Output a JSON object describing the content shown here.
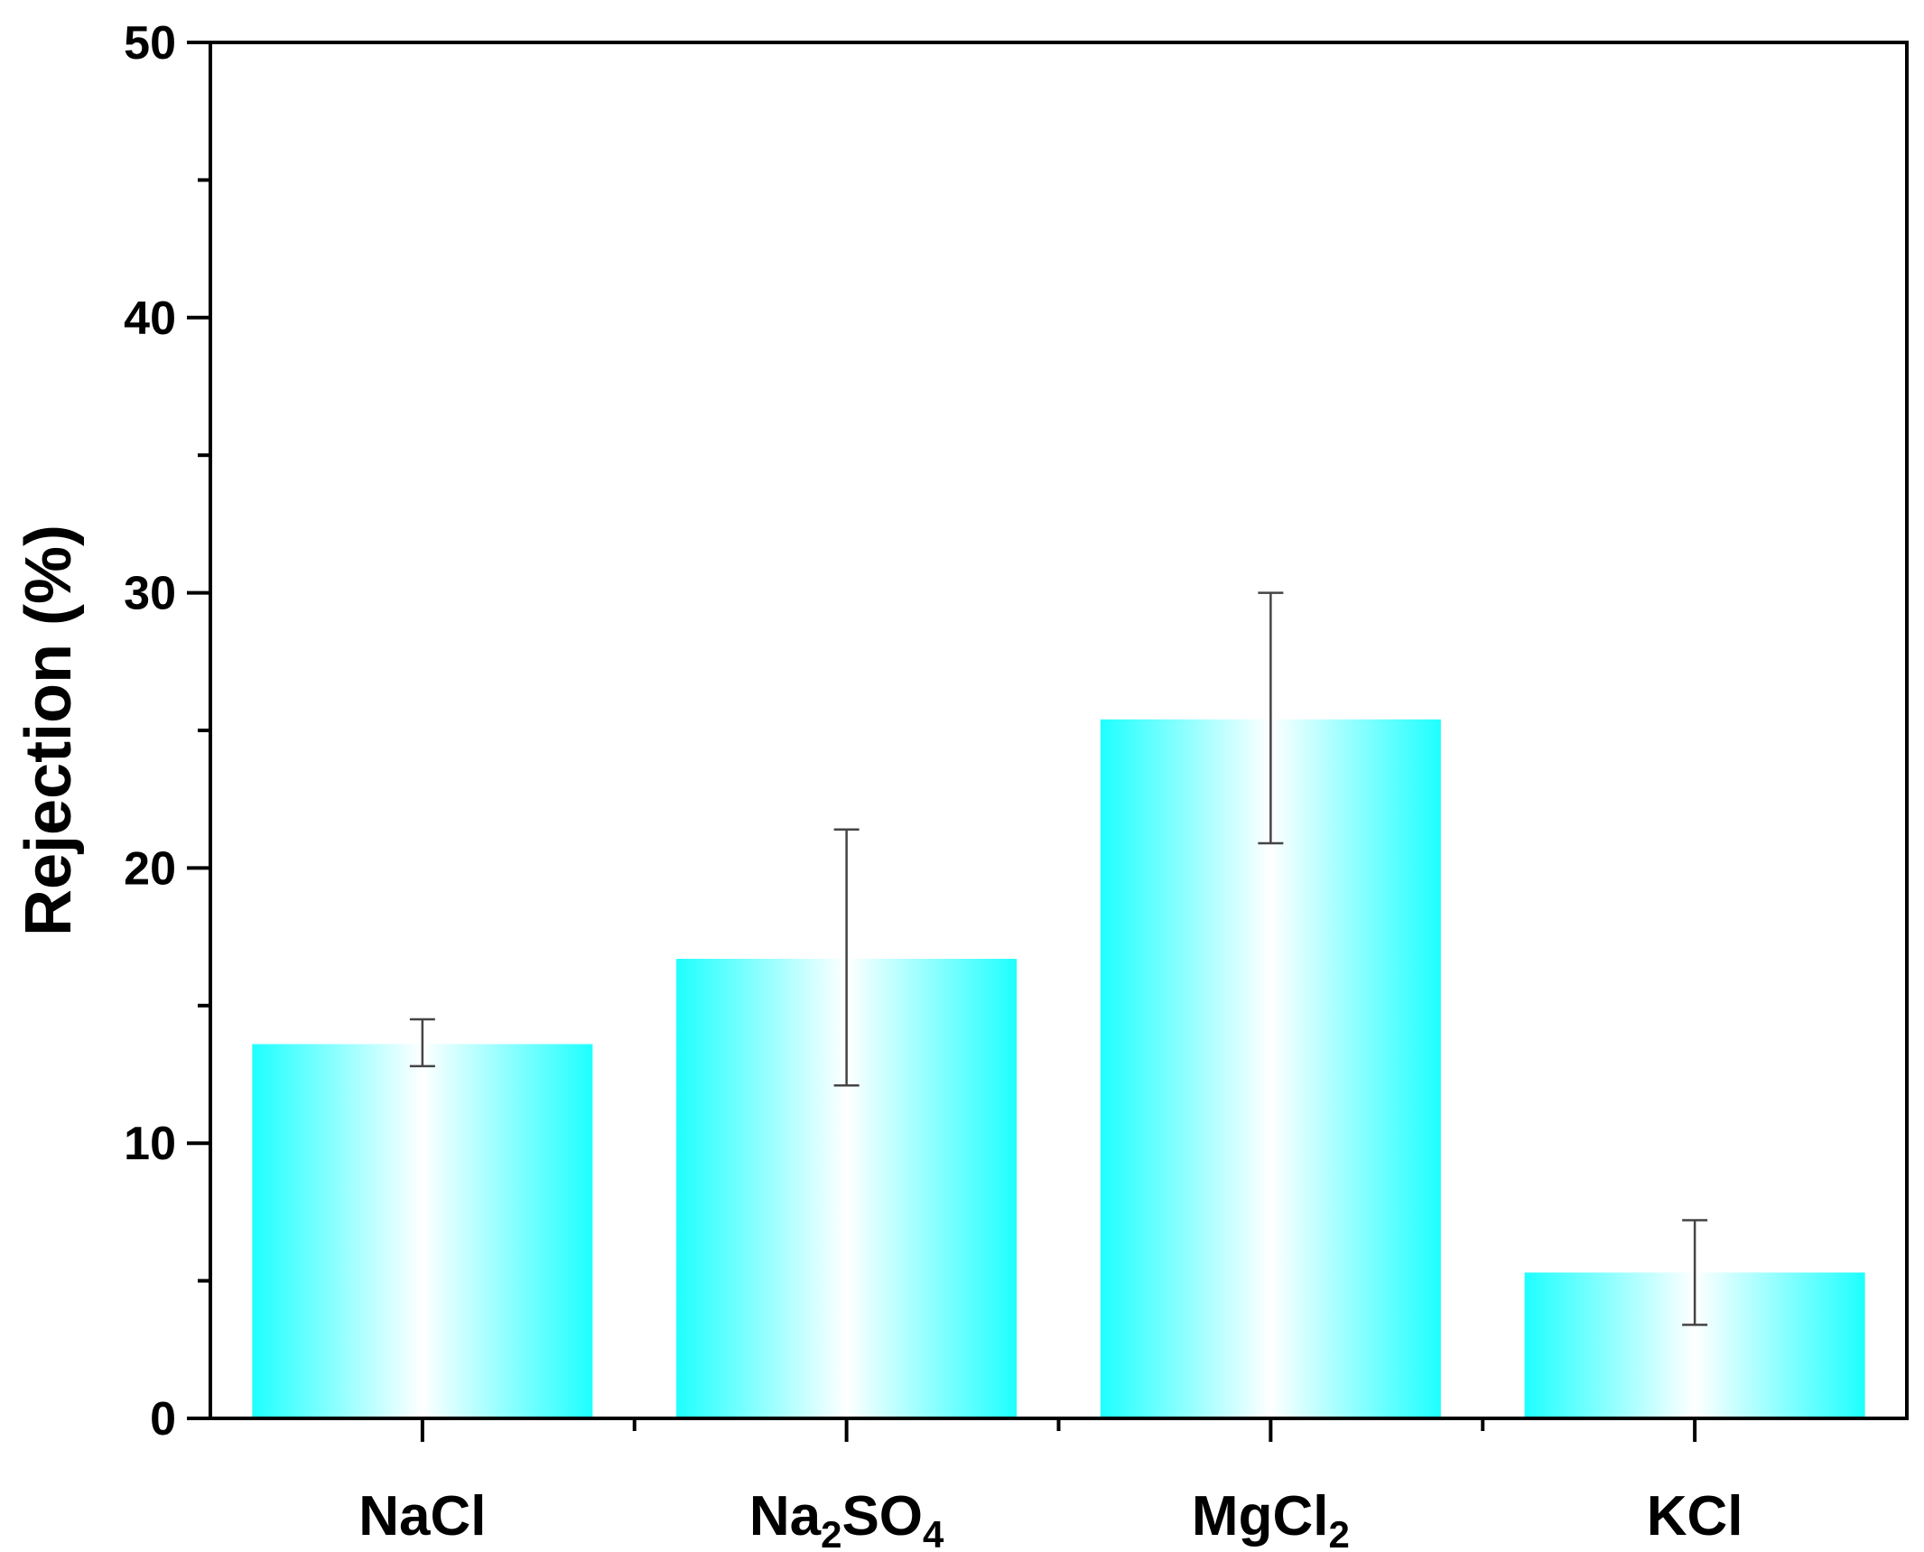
{
  "chart_data": {
    "type": "bar",
    "title": "",
    "xlabel": "",
    "ylabel": "Rejection (%)",
    "ylim": [
      0,
      50
    ],
    "yticks": [
      "0",
      "10",
      "20",
      "30",
      "40",
      "50"
    ],
    "categories": [
      {
        "base": "Na",
        "parts": [
          {
            "t": "NaCl",
            "sub": false
          }
        ]
      },
      {
        "base": "Na2SO4",
        "parts": [
          {
            "t": "Na",
            "sub": false
          },
          {
            "t": "2",
            "sub": true
          },
          {
            "t": "SO",
            "sub": false
          },
          {
            "t": "4",
            "sub": true
          }
        ]
      },
      {
        "base": "MgCl2",
        "parts": [
          {
            "t": "MgCl",
            "sub": false
          },
          {
            "t": "2",
            "sub": true
          }
        ]
      },
      {
        "base": "KCl",
        "parts": [
          {
            "t": "KCl",
            "sub": false
          }
        ]
      }
    ],
    "category_labels": [
      "NaCl",
      "Na2SO4",
      "MgCl2",
      "KCl"
    ],
    "values": [
      13.6,
      16.7,
      25.4,
      5.3
    ],
    "error_low": [
      12.8,
      12.1,
      20.9,
      3.4
    ],
    "error_high": [
      14.5,
      21.4,
      30.0,
      7.2
    ],
    "grid": false,
    "colors": {
      "bar_edge": "#1EFFFF",
      "bar_center": "#FFFFFF",
      "axis": "#000000",
      "error": "#444444"
    }
  }
}
